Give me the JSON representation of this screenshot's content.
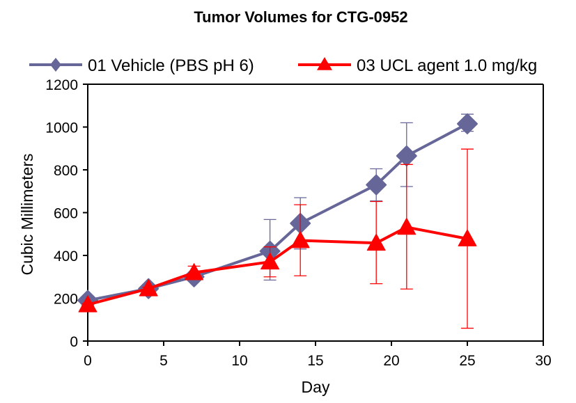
{
  "chart_data": {
    "type": "line",
    "title": "Tumor Volumes for CTG-0952",
    "xlabel": "Day",
    "ylabel": "Cubic Millimeters",
    "xlim": [
      0,
      30
    ],
    "ylim": [
      0,
      1200
    ],
    "xticks": [
      0,
      5,
      10,
      15,
      20,
      25,
      30
    ],
    "yticks": [
      0,
      200,
      400,
      600,
      800,
      1000,
      1200
    ],
    "xtick_labels": [
      "0",
      "5",
      "10",
      "15",
      "20",
      "25",
      "30"
    ],
    "ytick_labels": [
      "0",
      "200",
      "400",
      "600",
      "800",
      "1000",
      "1200"
    ],
    "grid": false,
    "legend_position": "top",
    "series": [
      {
        "name": "01 Vehicle (PBS pH 6)",
        "color": "#666699",
        "marker": "diamond",
        "x": [
          0,
          4,
          7,
          12,
          14,
          19,
          21,
          25
        ],
        "y": [
          190,
          245,
          300,
          420,
          550,
          730,
          865,
          1015
        ],
        "err_low": [
          185,
          235,
          290,
          285,
          430,
          655,
          722,
          980
        ],
        "err_high": [
          195,
          255,
          310,
          568,
          670,
          805,
          1020,
          1060
        ]
      },
      {
        "name": "03 UCL agent 1.0 mg/kg",
        "color": "#FF0000",
        "marker": "triangle",
        "x": [
          0,
          4,
          7,
          12,
          14,
          19,
          21,
          25
        ],
        "y": [
          170,
          245,
          320,
          370,
          470,
          458,
          532,
          478
        ],
        "err_low": [
          165,
          238,
          305,
          300,
          305,
          268,
          243,
          60
        ],
        "err_high": [
          175,
          252,
          350,
          440,
          637,
          652,
          825,
          897
        ]
      }
    ]
  }
}
